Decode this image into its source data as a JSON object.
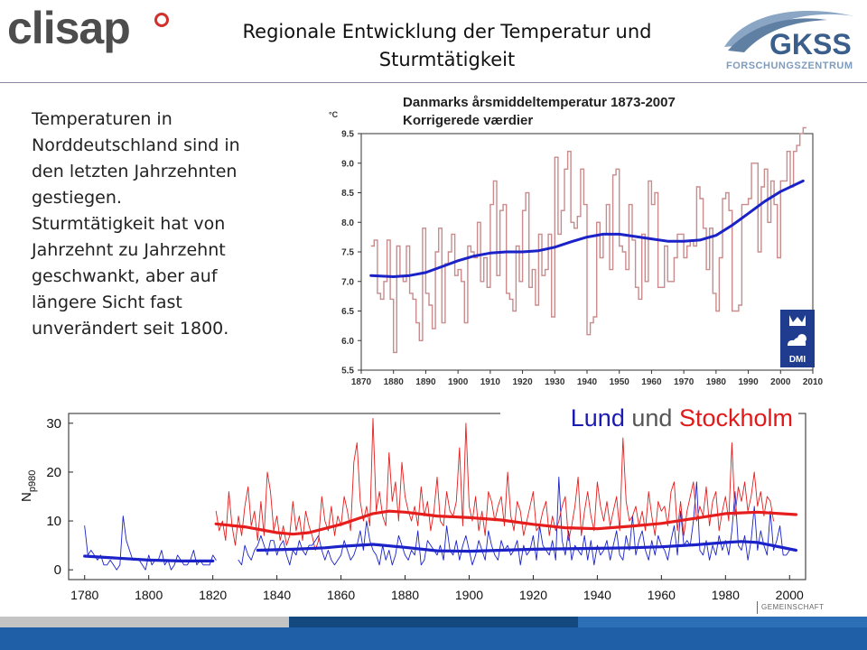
{
  "header": {
    "title": "Regionale Entwicklung der Temperatur und Sturmtätigkeit",
    "logo_left": "clisap",
    "logo_right_main": "GKSS",
    "logo_right_sub": "FORSCHUNGSZENTRUM"
  },
  "body_text": "Temperaturen in\nNorddeutschland sind in\nden letzten Jahrzehnten\ngestiegen.\nSturmtätigkeit hat von\nJahrzehnt zu Jahrzehnt\ngeschwankt, aber auf\nlängere Sicht fast\nunverändert seit 1800.",
  "footer": {
    "gemeinschaft": "GEMEINSCHAFT"
  },
  "dmi_logo": "DMI",
  "colors": {
    "temp_annual": "#c98b8b",
    "temp_smooth": "#1a22c8",
    "lund": "#1a22c8",
    "stockholm": "#e51d1d",
    "footer_blue": "#1f5fa8",
    "footer_gray": "#c4c4c4"
  },
  "chart_data": [
    {
      "type": "line",
      "title": "Danmarks årsmiddeltemperatur 1873-2007",
      "subtitle": "Korrigerede værdier",
      "ylabel": "°C",
      "xlabel": "",
      "xlim": [
        1870,
        2010
      ],
      "ylim": [
        5.5,
        9.5
      ],
      "xticks": [
        1870,
        1880,
        1890,
        1900,
        1910,
        1920,
        1930,
        1940,
        1950,
        1960,
        1970,
        1980,
        1990,
        2000,
        2010
      ],
      "yticks": [
        "5.5",
        "6.0",
        "6.5",
        "7.0",
        "7.5",
        "8.0",
        "8.5",
        "9.0",
        "9.5"
      ],
      "grid": false,
      "series": [
        {
          "style": "step",
          "x": [
            1873,
            1874,
            1875,
            1876,
            1877,
            1878,
            1879,
            1880,
            1881,
            1882,
            1883,
            1884,
            1885,
            1886,
            1887,
            1888,
            1889,
            1890,
            1891,
            1892,
            1893,
            1894,
            1895,
            1896,
            1897,
            1898,
            1899,
            1900,
            1901,
            1902,
            1903,
            1904,
            1905,
            1906,
            1907,
            1908,
            1909,
            1910,
            1911,
            1912,
            1913,
            1914,
            1915,
            1916,
            1917,
            1918,
            1919,
            1920,
            1921,
            1922,
            1923,
            1924,
            1925,
            1926,
            1927,
            1928,
            1929,
            1930,
            1931,
            1932,
            1933,
            1934,
            1935,
            1936,
            1937,
            1938,
            1939,
            1940,
            1941,
            1942,
            1943,
            1944,
            1945,
            1946,
            1947,
            1948,
            1949,
            1950,
            1951,
            1952,
            1953,
            1954,
            1955,
            1956,
            1957,
            1958,
            1959,
            1960,
            1961,
            1962,
            1963,
            1964,
            1965,
            1966,
            1967,
            1968,
            1969,
            1970,
            1971,
            1972,
            1973,
            1974,
            1975,
            1976,
            1977,
            1978,
            1979,
            1980,
            1981,
            1982,
            1983,
            1984,
            1985,
            1986,
            1987,
            1988,
            1989,
            1990,
            1991,
            1992,
            1993,
            1994,
            1995,
            1996,
            1997,
            1998,
            1999,
            2000,
            2001,
            2002,
            2003,
            2004,
            2005,
            2006,
            2007
          ],
          "values": [
            7.6,
            7.7,
            6.8,
            6.7,
            7.0,
            7.7,
            6.7,
            5.8,
            7.6,
            7.1,
            7.0,
            7.6,
            6.8,
            6.7,
            6.3,
            6.0,
            7.9,
            6.8,
            6.6,
            6.2,
            7.5,
            7.9,
            6.3,
            7.3,
            7.5,
            7.8,
            7.1,
            7.2,
            7.0,
            6.3,
            7.6,
            7.5,
            7.4,
            8.0,
            7.0,
            7.4,
            6.9,
            8.3,
            8.7,
            7.1,
            8.2,
            8.3,
            6.8,
            6.7,
            6.5,
            7.6,
            7.0,
            8.2,
            8.5,
            6.9,
            7.2,
            6.6,
            7.8,
            7.1,
            7.2,
            7.8,
            6.4,
            9.1,
            7.8,
            8.2,
            8.9,
            9.2,
            8.0,
            7.9,
            8.1,
            8.9,
            8.3,
            6.1,
            6.3,
            6.4,
            8.0,
            7.4,
            7.8,
            8.3,
            7.2,
            8.8,
            8.9,
            7.6,
            7.5,
            7.2,
            8.3,
            7.7,
            6.9,
            6.7,
            7.8,
            7.0,
            8.7,
            8.3,
            8.5,
            6.9,
            6.9,
            7.6,
            7.0,
            7.0,
            7.4,
            7.8,
            7.8,
            7.4,
            7.6,
            7.7,
            7.6,
            8.6,
            8.4,
            7.9,
            7.2,
            7.9,
            6.8,
            6.5,
            7.4,
            8.4,
            8.5,
            8.2,
            6.5,
            6.5,
            6.6,
            8.3,
            8.3,
            8.4,
            9.0,
            9.0,
            7.5,
            8.6,
            8.9,
            8.0,
            8.7,
            8.3,
            7.4,
            8.7,
            8.7,
            9.2,
            8.6,
            9.2,
            9.3,
            9.5,
            9.6
          ]
        },
        {
          "style": "smooth",
          "x": [
            1873,
            1880,
            1885,
            1890,
            1895,
            1900,
            1905,
            1910,
            1915,
            1920,
            1925,
            1930,
            1935,
            1940,
            1945,
            1950,
            1955,
            1960,
            1965,
            1970,
            1975,
            1980,
            1985,
            1990,
            1995,
            2000,
            2007
          ],
          "values": [
            7.1,
            7.08,
            7.1,
            7.15,
            7.25,
            7.35,
            7.43,
            7.48,
            7.5,
            7.5,
            7.52,
            7.58,
            7.67,
            7.75,
            7.8,
            7.8,
            7.76,
            7.72,
            7.68,
            7.68,
            7.7,
            7.78,
            7.95,
            8.15,
            8.35,
            8.52,
            8.7
          ]
        }
      ]
    },
    {
      "type": "line",
      "title": "Lund und Stockholm",
      "title_parts": [
        "Lund",
        "und",
        "Stockholm"
      ],
      "ylabel": "N",
      "ylabel_sub": "p980",
      "xlabel": "",
      "xlim": [
        1775,
        2005
      ],
      "ylim": [
        -2,
        32
      ],
      "xticks": [
        1780,
        1800,
        1820,
        1840,
        1860,
        1880,
        1900,
        1920,
        1940,
        1960,
        1980,
        2000
      ],
      "yticks": [
        0,
        10,
        20,
        30
      ],
      "grid": false,
      "series": [
        {
          "name": "Lund",
          "start": 1780,
          "values": [
            9,
            3,
            4,
            3,
            2,
            3,
            1,
            1,
            2,
            1,
            0,
            1,
            11,
            6,
            4,
            2,
            2,
            2,
            1,
            0,
            3,
            1,
            2,
            2,
            4,
            1,
            2,
            0,
            1,
            3,
            2,
            1,
            1,
            2,
            4,
            1,
            2,
            1,
            1,
            1,
            3,
            2
          ]
        },
        {
          "name": "Lund",
          "start": 1828,
          "values": [
            2,
            1,
            5,
            3,
            2,
            4,
            5,
            7,
            5,
            3,
            6,
            6,
            3,
            5,
            6,
            3,
            1,
            4,
            3,
            6,
            4,
            3,
            5,
            5,
            6,
            7,
            4,
            2,
            4,
            2,
            1,
            2,
            3,
            6,
            4,
            2,
            3,
            5,
            8,
            4,
            10,
            6,
            4,
            3,
            1,
            5,
            2,
            4,
            1,
            3,
            7,
            5,
            3,
            2,
            4,
            3,
            8,
            1,
            2,
            6,
            5,
            4,
            3,
            5,
            2,
            9,
            4,
            3,
            6,
            2,
            5,
            7,
            4,
            1,
            3,
            6,
            4,
            2,
            8,
            5,
            3,
            2,
            6,
            4,
            5,
            3,
            4,
            6,
            1,
            5,
            3,
            4,
            7,
            2,
            9,
            5,
            4,
            3,
            6,
            2,
            19,
            6,
            3,
            8,
            2,
            5,
            4,
            3,
            7,
            2,
            6,
            1,
            5,
            3,
            4,
            6,
            2,
            5,
            8,
            3,
            2,
            7,
            4,
            11,
            3,
            6,
            8,
            4,
            2,
            6,
            3,
            7,
            5,
            4,
            2,
            6,
            9,
            3,
            12,
            5,
            6,
            5,
            10,
            18,
            4,
            3,
            6,
            2,
            5,
            3,
            7,
            4,
            6,
            3,
            8,
            16,
            5,
            4,
            7,
            2,
            6,
            13,
            4,
            8,
            5,
            3,
            12,
            4,
            6,
            9,
            3,
            3,
            4
          ]
        },
        {
          "name": "Stockholm",
          "start": 1821,
          "values": [
            12,
            8,
            10,
            6,
            16,
            9,
            5,
            11,
            7,
            13,
            17,
            9,
            12,
            6,
            14,
            7,
            20,
            16,
            8,
            11,
            6,
            9,
            5,
            7,
            14,
            8,
            11,
            6,
            12,
            9,
            7,
            4,
            6,
            15,
            10,
            8,
            13,
            7,
            11,
            9,
            15,
            12,
            8,
            22,
            26,
            14,
            10,
            13,
            9,
            31,
            12,
            16,
            11,
            9,
            24,
            14,
            18,
            10,
            22,
            15,
            12,
            10,
            13,
            9,
            17,
            11,
            14,
            8,
            12,
            19,
            10,
            9,
            16,
            12,
            11,
            14,
            25,
            9,
            30,
            13,
            10,
            15,
            8,
            12,
            7,
            16,
            14,
            10,
            13,
            15,
            9,
            20,
            11,
            8,
            14,
            12,
            7,
            10,
            13,
            16,
            8,
            9,
            12,
            14,
            7,
            11,
            8,
            10,
            13,
            15,
            6,
            9,
            13,
            19,
            7,
            12,
            16,
            11,
            8,
            18,
            13,
            10,
            14,
            9,
            12,
            15,
            8,
            27,
            14,
            10,
            11,
            13,
            9,
            12,
            8,
            16,
            11,
            7,
            14,
            12,
            13,
            9,
            16,
            18,
            8,
            14,
            7,
            12,
            15,
            18,
            10,
            13,
            11,
            17,
            9,
            14,
            16,
            8,
            12,
            15,
            10,
            26,
            11,
            17,
            14,
            18,
            12,
            15,
            20,
            13,
            16,
            11,
            15,
            14,
            10
          ]
        },
        {
          "name": "Lund",
          "style": "smooth",
          "x": [
            1780,
            1790,
            1800,
            1810,
            1820
          ],
          "values": [
            2.8,
            2.4,
            2.0,
            1.8,
            1.8
          ]
        },
        {
          "name": "Lund",
          "style": "smooth",
          "x": [
            1834,
            1845,
            1855,
            1860,
            1870,
            1880,
            1890,
            1900,
            1910,
            1920,
            1930,
            1940,
            1950,
            1960,
            1970,
            1980,
            1985,
            1990,
            2002
          ],
          "values": [
            4.0,
            4.2,
            4.5,
            4.8,
            5.2,
            4.6,
            3.9,
            3.8,
            4.0,
            4.2,
            4.3,
            4.4,
            4.5,
            4.7,
            5.1,
            5.6,
            5.8,
            5.6,
            4.0
          ]
        },
        {
          "name": "Stockholm",
          "style": "smooth",
          "x": [
            1821,
            1830,
            1840,
            1845,
            1850,
            1860,
            1870,
            1875,
            1880,
            1890,
            1900,
            1910,
            1920,
            1930,
            1940,
            1950,
            1960,
            1970,
            1980,
            1990,
            2002
          ],
          "values": [
            9.4,
            8.8,
            7.6,
            7.3,
            7.6,
            9.3,
            11.5,
            12.0,
            11.8,
            11.0,
            10.7,
            10.2,
            9.3,
            8.6,
            8.4,
            8.9,
            9.5,
            10.5,
            11.5,
            11.8,
            11.3
          ]
        }
      ]
    }
  ]
}
